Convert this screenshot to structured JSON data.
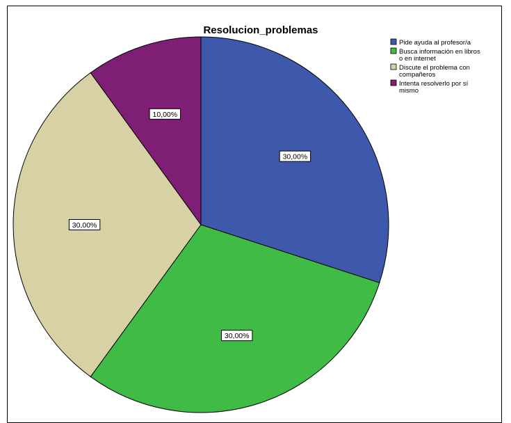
{
  "chart_data": {
    "type": "pie",
    "title": "Resolucion_problemas",
    "categories": [
      "Pide ayuda al profesor/a",
      "Busca información en libros o en internet",
      "Discute el problema con compañeros",
      "Intenta resolverlo por sí mismo"
    ],
    "legend_lines": [
      [
        "Pide ayuda al profesor/a"
      ],
      [
        "Busca información en libros",
        "o en internet"
      ],
      [
        "Discute el problema con",
        "compañeros"
      ],
      [
        "Intenta resolverlo por sí",
        "mismo"
      ]
    ],
    "values": [
      30,
      30,
      30,
      10
    ],
    "data_labels": [
      "30,00%",
      "30,00%",
      "30,00%",
      "10,00%"
    ],
    "colors": [
      "#3e58ac",
      "#3fbb46",
      "#d8d1a6",
      "#7e1e74"
    ],
    "start_angle_deg": 0,
    "direction": "clockwise",
    "legend_placement": "top-right"
  }
}
